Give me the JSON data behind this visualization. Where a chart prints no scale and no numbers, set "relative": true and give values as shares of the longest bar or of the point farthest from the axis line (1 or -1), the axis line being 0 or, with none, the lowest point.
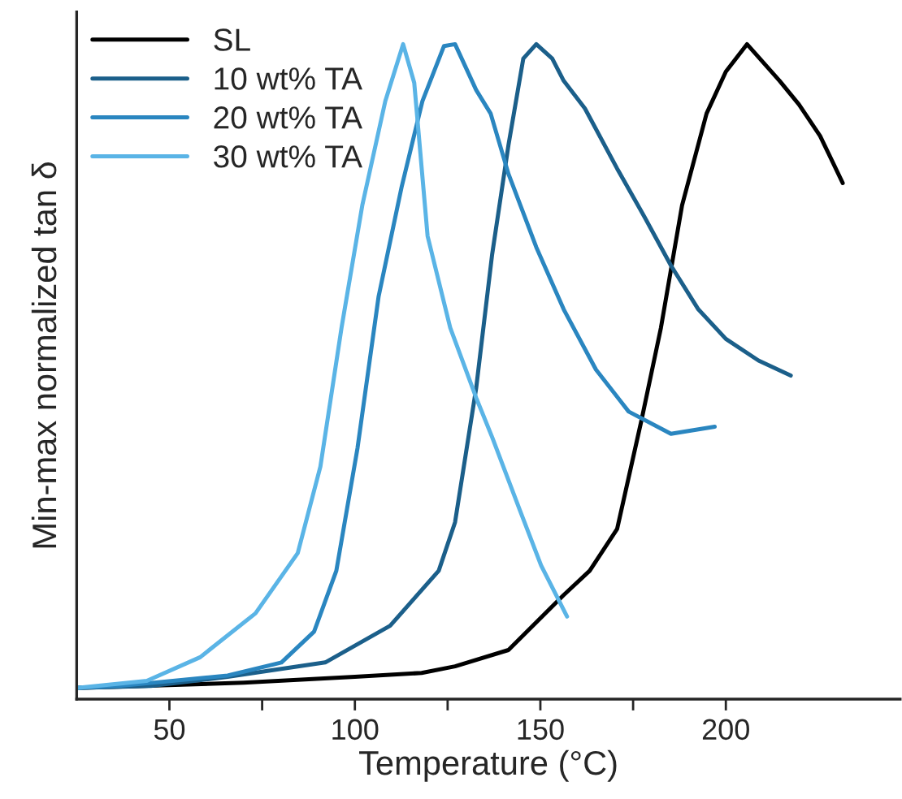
{
  "chart_data": {
    "type": "line",
    "relative": true,
    "xlabel": "Temperature (°C)",
    "ylabel": "Min-max normalized tan δ",
    "xlim": [
      25,
      247
    ],
    "xticks": [
      50,
      {
        "value": 75,
        "label": null
      },
      100,
      {
        "value": 125,
        "label": null
      },
      150,
      {
        "value": 175,
        "label": null
      },
      200
    ],
    "legend": "top left",
    "grid": false,
    "tick_labels": "x",
    "series": [
      {
        "name": "SL",
        "color": "#000000",
        "x": [
          25,
          70,
          100,
          118,
          127,
          141.4,
          156.3,
          163.3,
          170.7,
          177.3,
          182.5,
          188.2,
          194.8,
          200,
          205.7,
          214.5,
          219.7,
          225.4,
          231.5
        ],
        "values": [
          0.017,
          0.025,
          0.034,
          0.04,
          0.05,
          0.075,
          0.159,
          0.196,
          0.26,
          0.427,
          0.567,
          0.754,
          0.894,
          0.958,
          1.0,
          0.944,
          0.908,
          0.86,
          0.788
        ]
      },
      {
        "name": "10 wt% TA",
        "color": "#1b5f8a",
        "x": [
          25,
          45,
          65.7,
          92,
          109.5,
          122.6,
          127,
          132.7,
          137,
          141.4,
          145.4,
          148.9,
          153.2,
          156.3,
          162,
          170.7,
          178.2,
          185.2,
          192.6,
          200,
          208.8,
          217.5
        ],
        "values": [
          0.017,
          0.02,
          0.034,
          0.056,
          0.112,
          0.196,
          0.27,
          0.475,
          0.679,
          0.846,
          0.978,
          1.0,
          0.978,
          0.944,
          0.902,
          0.81,
          0.735,
          0.662,
          0.595,
          0.55,
          0.517,
          0.494
        ]
      },
      {
        "name": "20 wt% TA",
        "color": "#2a86c0",
        "x": [
          25,
          36.4,
          65.7,
          80.2,
          89,
          95,
          100.7,
          106.4,
          112.6,
          118.2,
          124,
          127,
          132.7,
          136.6,
          141.4,
          148.9,
          156.3,
          165,
          173.8,
          185.2,
          197
        ],
        "values": [
          0.017,
          0.02,
          0.036,
          0.056,
          0.103,
          0.196,
          0.383,
          0.615,
          0.782,
          0.913,
          0.997,
          1.0,
          0.93,
          0.894,
          0.802,
          0.69,
          0.595,
          0.503,
          0.439,
          0.405,
          0.416
        ]
      },
      {
        "name": "30 wt% TA",
        "color": "#5ab4e6",
        "x": [
          25,
          43.9,
          58.3,
          73.2,
          84.6,
          90.7,
          96.4,
          102,
          108.2,
          113,
          116,
          119.6,
          125.7,
          132.7,
          137,
          144.5,
          150.2,
          157.2
        ],
        "values": [
          0.017,
          0.028,
          0.064,
          0.131,
          0.223,
          0.355,
          0.567,
          0.754,
          0.913,
          1.0,
          0.941,
          0.707,
          0.567,
          0.46,
          0.4,
          0.288,
          0.204,
          0.126
        ]
      }
    ]
  }
}
